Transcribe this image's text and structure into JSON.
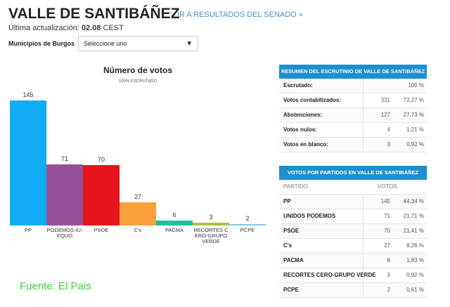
{
  "header": {
    "title": "VALLE DE SANTIBÁÑEZ",
    "link": "IR A RESULTADOS DEL SENADO »",
    "update_label": "Última actualización:",
    "update_time": "02.08",
    "update_zone": "CEST"
  },
  "filter": {
    "label": "Municipios de Burgos",
    "select": "Seleccione uno"
  },
  "chart_data": {
    "type": "bar",
    "title": "Número de votos",
    "subtitle": "100% ESCRUTADO",
    "categories": [
      "PP",
      "PODEMOS-IU-EQUO",
      "PSOE",
      "C's",
      "PACMA",
      "RECORTES CERO-GRUPO VERDE",
      "PCPE"
    ],
    "values": [
      145,
      71,
      70,
      27,
      6,
      3,
      2
    ],
    "colors": [
      "#12acf4",
      "#96509a",
      "#e8141b",
      "#f8a13c",
      "#1cbfa0",
      "#a9c43c",
      "#86c9e8"
    ]
  },
  "summary": {
    "title": "RESUMEN DEL ESCRUTINIO DE VALLE DE SANTIBÁÑEZ",
    "rows": [
      {
        "label": "Escrutado:",
        "pct": "100 %"
      },
      {
        "label": "Votos contabilizados:",
        "count": "331",
        "pct": "72,27 %"
      },
      {
        "label": "Abstenciones:",
        "count": "127",
        "pct": "27,73 %"
      },
      {
        "label": "Votos nulos:",
        "count": "4",
        "pct": "1,21 %"
      },
      {
        "label": "Votos en blanco:",
        "count": "3",
        "pct": "0,92 %"
      }
    ]
  },
  "parties": {
    "title": "VOTOS POR PARTIDOS EN VALLE DE SANTIBÁÑEZ",
    "col_party": "PARTIDO",
    "col_votes": "VOTOS",
    "rows": [
      {
        "label": "PP",
        "count": "145",
        "pct": "44,34 %"
      },
      {
        "label": "UNIDOS PODEMOS",
        "count": "71",
        "pct": "21,71 %"
      },
      {
        "label": "PSOE",
        "count": "70",
        "pct": "21,41 %"
      },
      {
        "label": "C's",
        "count": "27",
        "pct": "8,26 %"
      },
      {
        "label": "PACMA",
        "count": "6",
        "pct": "1,83 %"
      },
      {
        "label": "RECORTES CERO-GRUPO VERDE",
        "count": "3",
        "pct": "0,92 %"
      },
      {
        "label": "PCPE",
        "count": "2",
        "pct": "0,61 %"
      }
    ]
  },
  "source": "Fuente: El Pais"
}
